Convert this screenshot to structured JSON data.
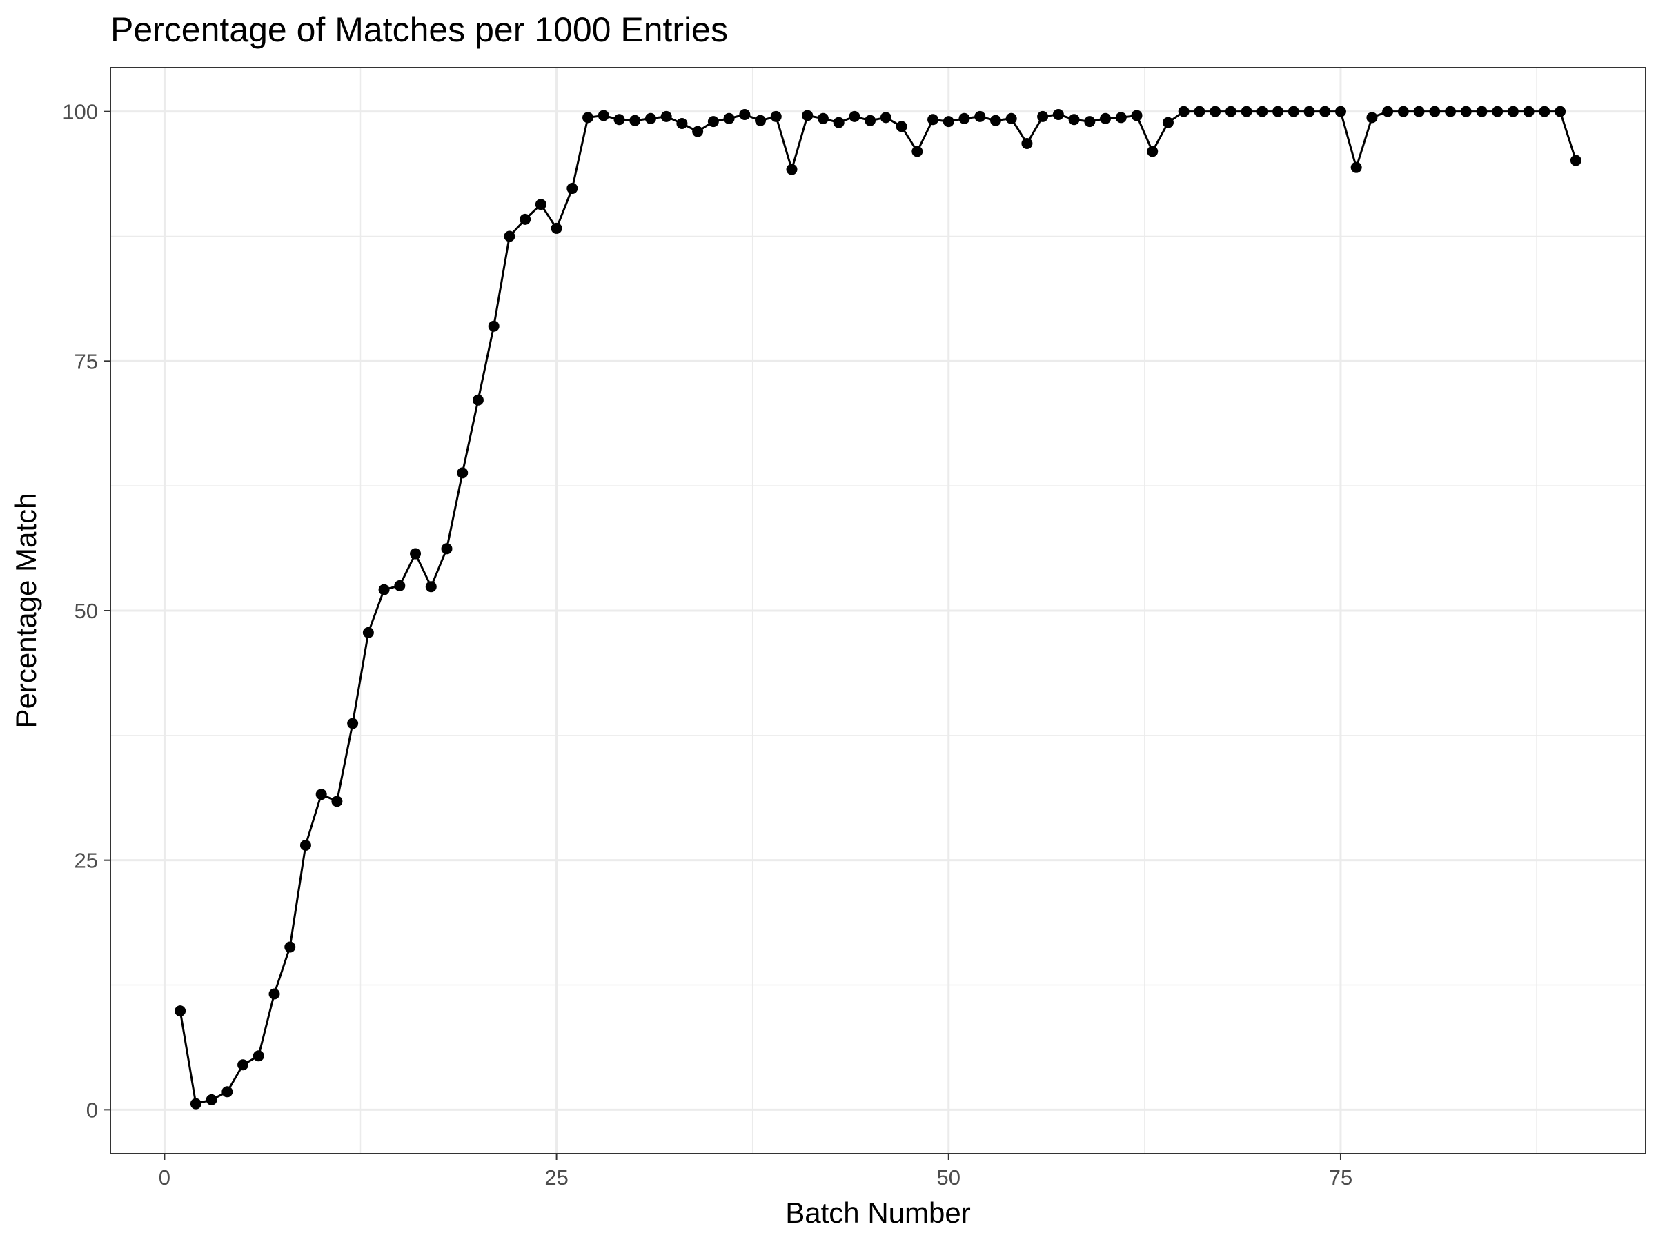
{
  "chart_data": {
    "type": "line",
    "title": "Percentage of Matches per 1000 Entries",
    "xlabel": "Batch Number",
    "ylabel": "Percentage Match",
    "xlim": [
      -3.45,
      94.45
    ],
    "ylim": [
      -4.4,
      104.4
    ],
    "x_ticks": [
      0,
      25,
      50,
      75
    ],
    "x_tick_labels": [
      "0",
      "25",
      "50",
      "75"
    ],
    "y_ticks": [
      0,
      25,
      50,
      75,
      100
    ],
    "y_tick_labels": [
      "0",
      "25",
      "50",
      "75",
      "100"
    ],
    "x_minor_grid": [
      12.5,
      37.5,
      62.5,
      87.5
    ],
    "y_minor_grid": [
      12.5,
      37.5,
      62.5,
      87.5
    ],
    "grid": true,
    "legend": "none",
    "line_color": "#000000",
    "marker": "circle",
    "x": [
      1,
      2,
      3,
      4,
      5,
      6,
      7,
      8,
      9,
      10,
      11,
      12,
      13,
      14,
      15,
      16,
      17,
      18,
      19,
      20,
      21,
      22,
      23,
      24,
      25,
      26,
      27,
      28,
      29,
      30,
      31,
      32,
      33,
      34,
      35,
      36,
      37,
      38,
      39,
      40,
      41,
      42,
      43,
      44,
      45,
      46,
      47,
      48,
      49,
      50,
      51,
      52,
      53,
      54,
      55,
      56,
      57,
      58,
      59,
      60,
      61,
      62,
      63,
      64,
      65,
      66,
      67,
      68,
      69,
      70,
      71,
      72,
      73,
      74,
      75,
      76,
      77,
      78,
      79,
      80,
      81,
      82,
      83,
      84,
      85,
      86,
      87,
      88,
      89,
      90
    ],
    "y": [
      9.9,
      0.6,
      1.0,
      1.8,
      4.5,
      5.4,
      11.6,
      16.3,
      26.5,
      31.6,
      30.9,
      38.7,
      47.8,
      52.1,
      52.5,
      55.7,
      52.4,
      56.2,
      63.8,
      71.1,
      78.5,
      87.5,
      89.2,
      90.7,
      88.3,
      92.3,
      99.4,
      99.6,
      99.2,
      99.1,
      99.3,
      99.5,
      98.8,
      98.0,
      99.0,
      99.3,
      99.7,
      99.1,
      99.5,
      94.2,
      99.6,
      99.3,
      98.9,
      99.5,
      99.1,
      99.4,
      98.5,
      96.0,
      99.2,
      99.0,
      99.3,
      99.5,
      99.1,
      99.3,
      96.8,
      99.5,
      99.7,
      99.2,
      99.0,
      99.3,
      99.4,
      99.6,
      96.0,
      98.9,
      100,
      100,
      100,
      100,
      100,
      100,
      100,
      100,
      100,
      100,
      100,
      94.4,
      99.4,
      100,
      100,
      100,
      100,
      100,
      100,
      100,
      100,
      100,
      100,
      100,
      100,
      95.1
    ]
  }
}
